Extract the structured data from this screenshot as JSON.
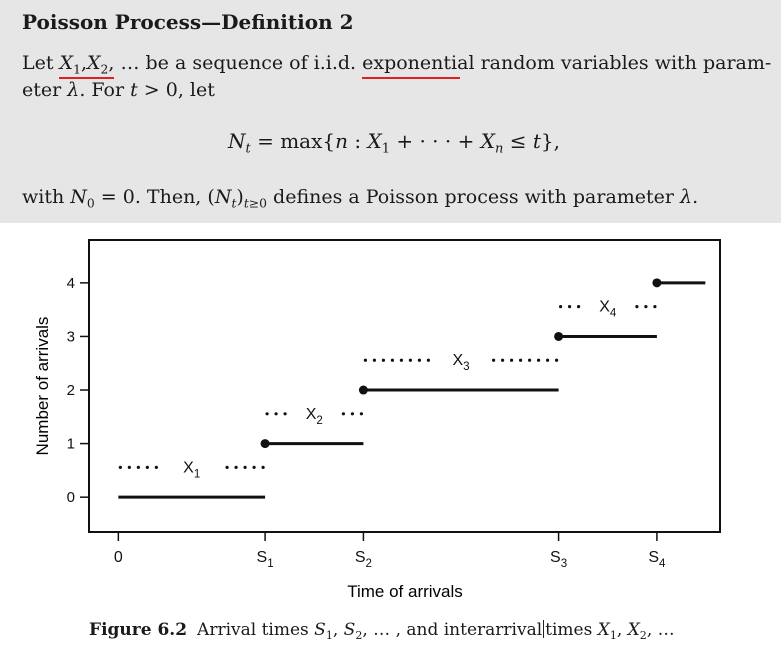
{
  "definition": {
    "title": "Poisson Process—Definition 2",
    "line1": {
      "let": "Let",
      "vars_shown": "X1, X2,",
      "ellipsis": "…",
      "text_a": "be a sequence of i.i.d.",
      "keyword": "exponential",
      "text_b": "random variables with param-"
    },
    "line2": {
      "text_a": "eter",
      "lambda": "λ",
      "text_b": ". For",
      "t": "t",
      "cond": "> 0, let"
    },
    "equation": "Nt = max{n : X1 + ··· + Xn ≤ t},",
    "line3": {
      "text_a": "with",
      "n0": "N0",
      "n0_eq": " = 0. Then,",
      "process": "(Nt)t≥0",
      "text_b": "defines a Poisson process with parameter",
      "lambda": "λ."
    }
  },
  "highlight_color": "#e02020",
  "figure": {
    "caption_label": "Figure 6.2",
    "caption_text_a": "Arrival times S1, S2, … , and interarrival",
    "caption_text_b": "times X1, X2, …"
  },
  "chart_data": {
    "type": "line",
    "subtype": "step",
    "xlabel": "Time of arrivals",
    "ylabel": "Number of arrivals",
    "x_ticks": [
      "0",
      "S1",
      "S2",
      "S3",
      "S4"
    ],
    "x_tick_values": [
      0,
      1,
      1.67,
      3,
      3.67
    ],
    "y_ticks": [
      "0",
      "1",
      "2",
      "3",
      "4"
    ],
    "ylim": [
      -0.65,
      4.8
    ],
    "xlim": [
      -0.2,
      4.1
    ],
    "steps": [
      {
        "level": 0,
        "start": 0,
        "end": 1,
        "label": "X1"
      },
      {
        "level": 1,
        "start": 1,
        "end": 1.67,
        "label": "X2"
      },
      {
        "level": 2,
        "start": 1.67,
        "end": 3,
        "label": "X3"
      },
      {
        "level": 3,
        "start": 3,
        "end": 3.67,
        "label": "X4"
      },
      {
        "level": 4,
        "start": 3.67,
        "end": 4.0,
        "label": ""
      }
    ],
    "grid": false
  }
}
